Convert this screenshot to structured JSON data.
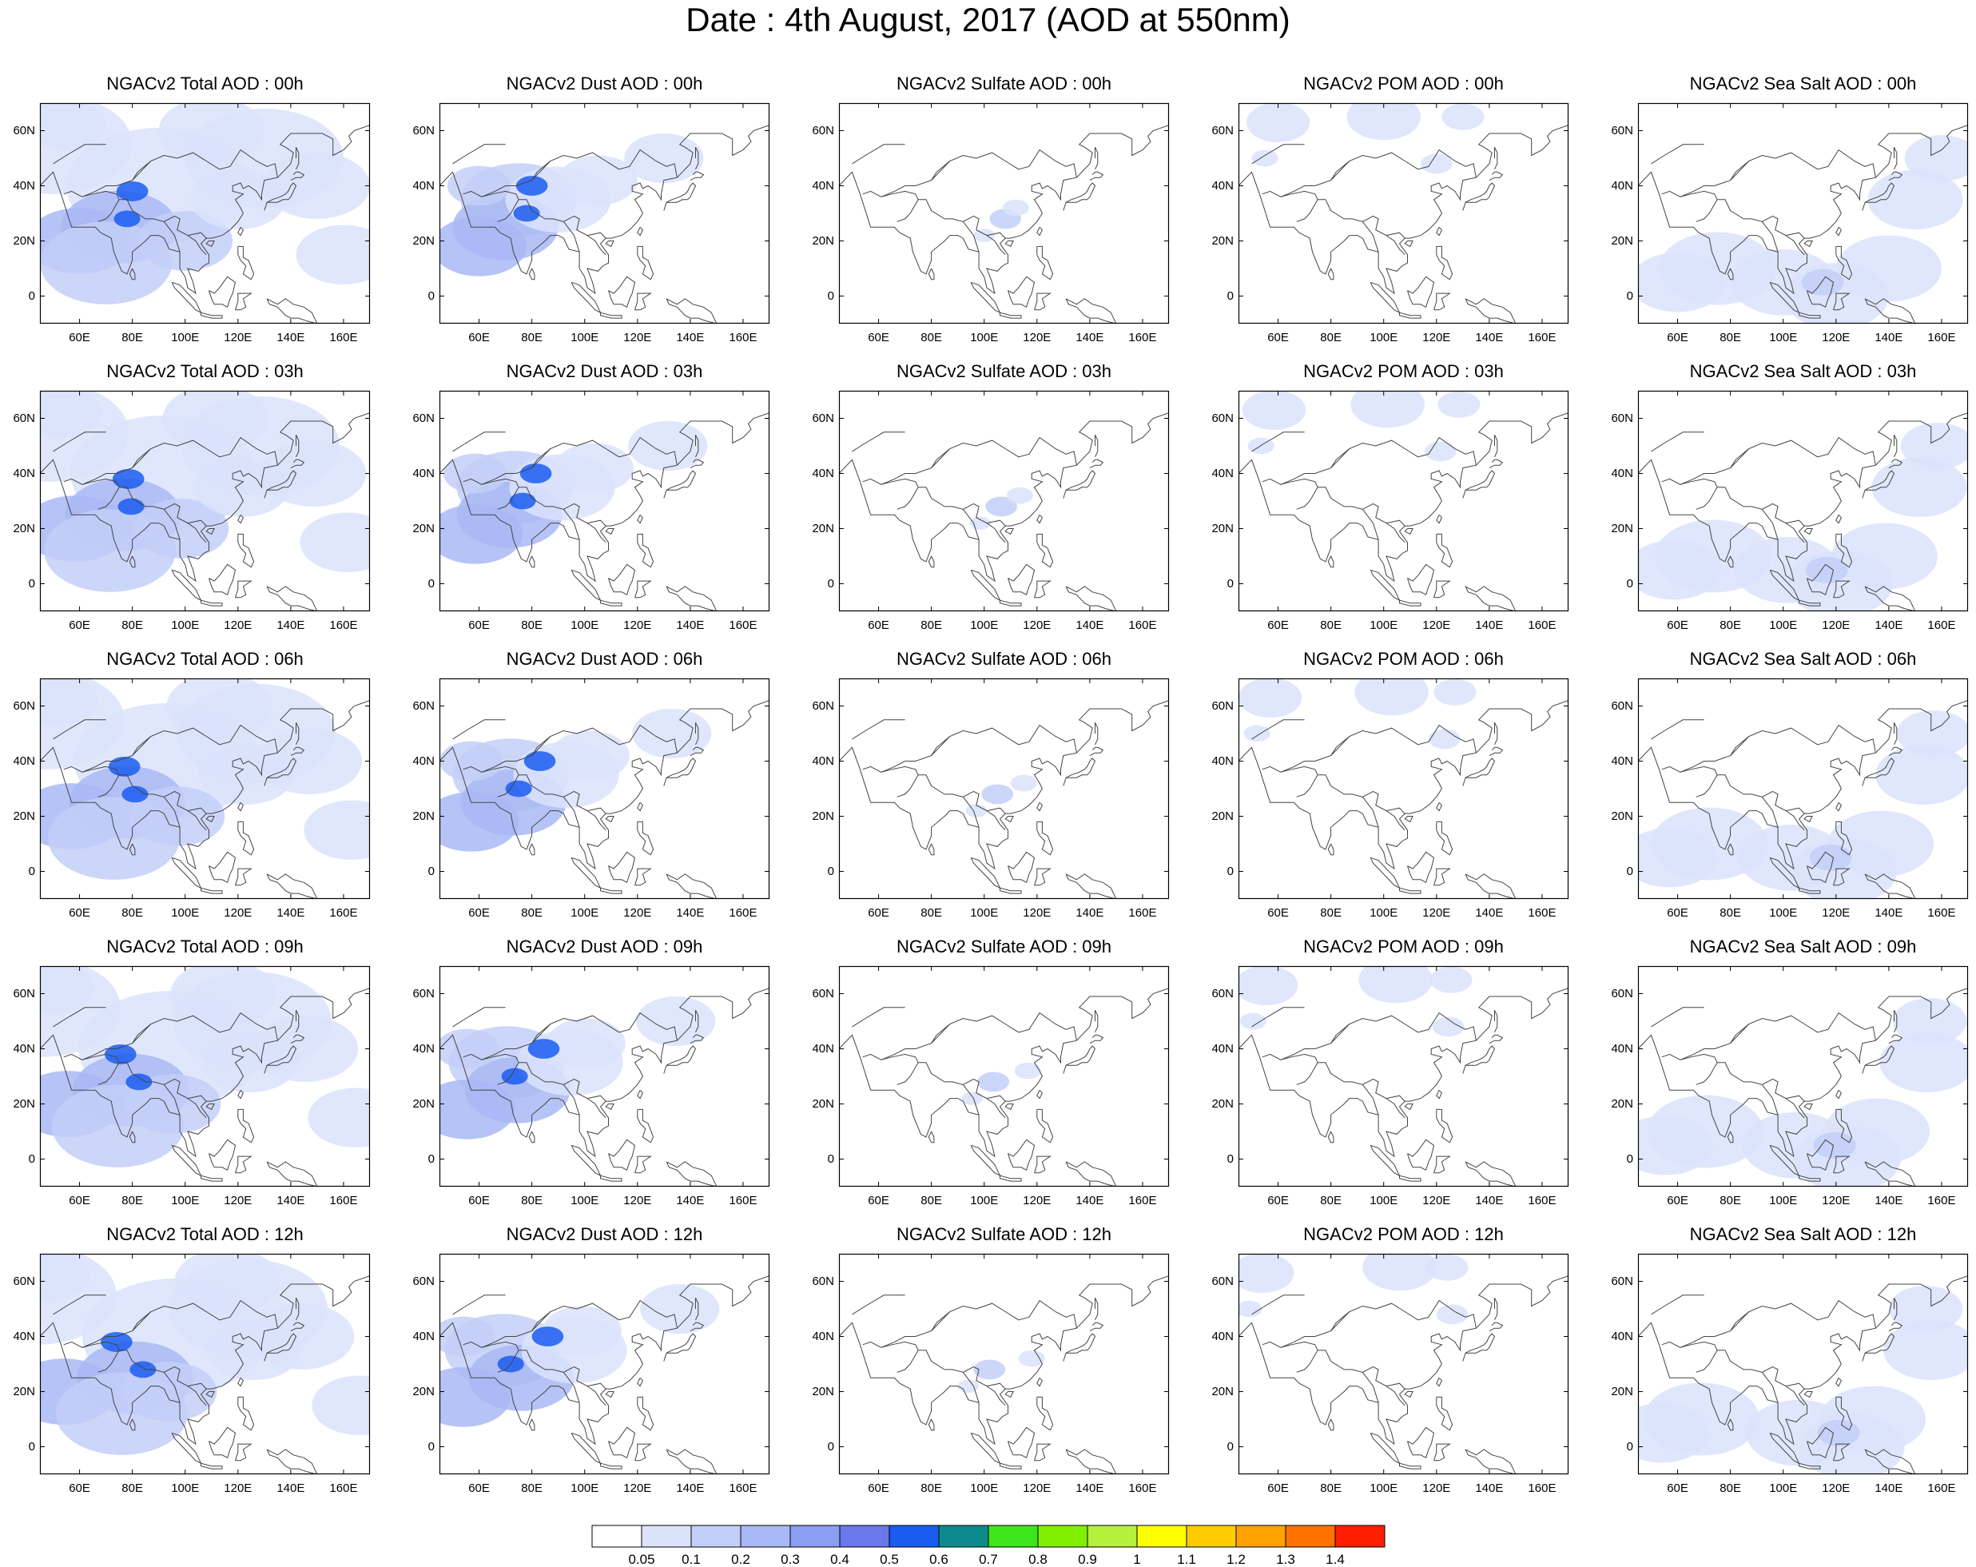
{
  "title": "Date : 4th August, 2017 (AOD at 550nm)",
  "panels": [
    [
      "NGACv2 Total AOD : 00h",
      "NGACv2 Dust AOD : 00h",
      "NGACv2 Sulfate AOD : 00h",
      "NGACv2 POM AOD : 00h",
      "NGACv2 Sea Salt AOD : 00h"
    ],
    [
      "NGACv2 Total AOD : 03h",
      "NGACv2 Dust AOD : 03h",
      "NGACv2 Sulfate AOD : 03h",
      "NGACv2 POM AOD : 03h",
      "NGACv2 Sea Salt AOD : 03h"
    ],
    [
      "NGACv2 Total AOD : 06h",
      "NGACv2 Dust AOD : 06h",
      "NGACv2 Sulfate AOD : 06h",
      "NGACv2 POM AOD : 06h",
      "NGACv2 Sea Salt AOD : 06h"
    ],
    [
      "NGACv2 Total AOD : 09h",
      "NGACv2 Dust AOD : 09h",
      "NGACv2 Sulfate AOD : 09h",
      "NGACv2 POM AOD : 09h",
      "NGACv2 Sea Salt  AOD : 09h"
    ],
    [
      "NGACv2 Total AOD  : 12h",
      "NGACv2 Dust AOD : 12h",
      "NGACv2 Sulfate AOD : 12h",
      "NGACv2 POM  AOD : 12h",
      "NGACv2 Sea Salt  AOD : 12h"
    ]
  ],
  "lat_ticks": [
    "60N",
    "40N",
    "20N",
    "0"
  ],
  "lon_ticks": [
    "60E",
    "80E",
    "100E",
    "120E",
    "140E",
    "160E"
  ],
  "colorbar": {
    "labels": [
      "0.05",
      "0.1",
      "0.2",
      "0.3",
      "0.4",
      "0.5",
      "0.6",
      "0.7",
      "0.8",
      "0.9",
      "1",
      "1.1",
      "1.2",
      "1.3",
      "1.4"
    ],
    "colors": [
      "#ffffff",
      "#dbe3fb",
      "#c3cff8",
      "#a9b9f5",
      "#8a9ef2",
      "#6a78ec",
      "#1a5cf0",
      "#0b8b8b",
      "#3ce61a",
      "#80f000",
      "#b4f03c",
      "#ffff00",
      "#ffcc00",
      "#ffa200",
      "#ff7200",
      "#ff1e00"
    ]
  },
  "colors": {
    "background": "#ffffff",
    "coastline": "#444444",
    "frame": "#000000"
  }
}
